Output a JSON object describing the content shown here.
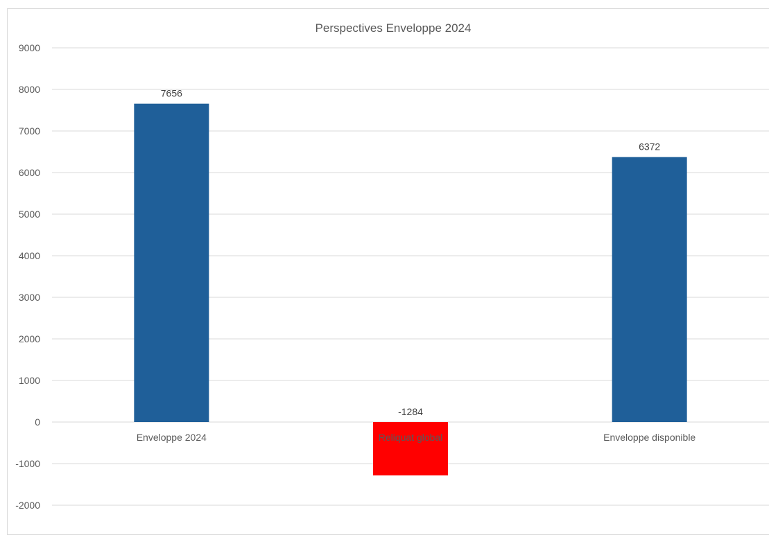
{
  "chart_data": {
    "type": "bar",
    "title": "Perspectives Enveloppe 2024",
    "xlabel": "",
    "ylabel": "",
    "categories": [
      "Enveloppe 2024",
      "Reliquat global",
      "Enveloppe disponible"
    ],
    "values": [
      7656,
      -1284,
      6372
    ],
    "data_labels": [
      "7656",
      "-1284",
      "6372"
    ],
    "bar_colors": [
      "#1F5F99",
      "#FF0000",
      "#1F5F99"
    ],
    "ylim": [
      -2000,
      9000
    ],
    "yticks": [
      9000,
      8000,
      7000,
      6000,
      5000,
      4000,
      3000,
      2000,
      1000,
      0,
      -1000,
      -2000
    ],
    "ytick_labels": [
      "9000",
      "8000",
      "7000",
      "6000",
      "5000",
      "4000",
      "3000",
      "2000",
      "1000",
      "0",
      "-1000",
      "-2000"
    ],
    "grid": true,
    "legend": "none"
  },
  "colors": {
    "gridline": "#d9d9d9",
    "axis_text": "#595959",
    "label_text": "#404040"
  }
}
